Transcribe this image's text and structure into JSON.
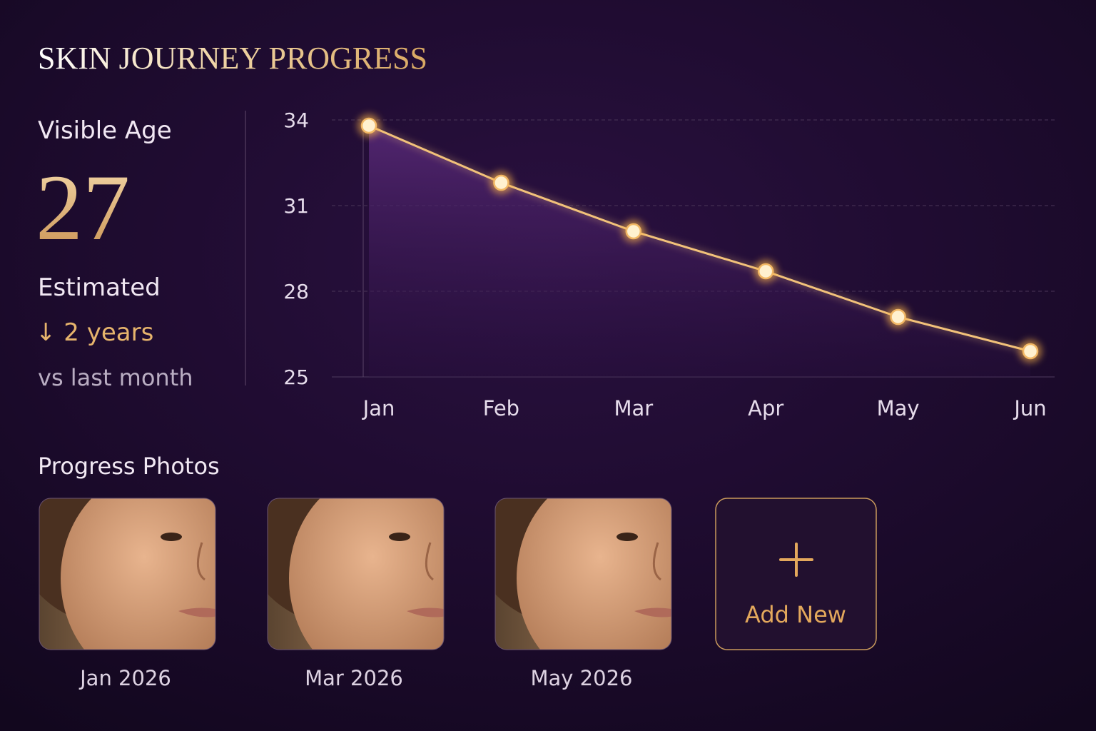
{
  "header": {
    "title": "SKIN JOURNEY PROGRESS"
  },
  "summary": {
    "label": "Visible Age",
    "value": "27",
    "note": "Estimated",
    "change": "↓ 2 years",
    "comparison": "vs last month"
  },
  "chart_data": {
    "type": "line",
    "categories": [
      "Jan",
      "Feb",
      "Mar",
      "Apr",
      "May",
      "Jun"
    ],
    "values": [
      33.8,
      31.8,
      30.1,
      28.7,
      27.1,
      25.9
    ],
    "color": "#f2c27a",
    "ylim": [
      25,
      34
    ],
    "yticks": [
      25,
      28,
      31,
      34
    ],
    "grid": true
  },
  "photos": {
    "title": "Progress Photos",
    "items": [
      "Jan 2026",
      "Mar 2026",
      "May 2026"
    ],
    "add_label": "Add New"
  }
}
